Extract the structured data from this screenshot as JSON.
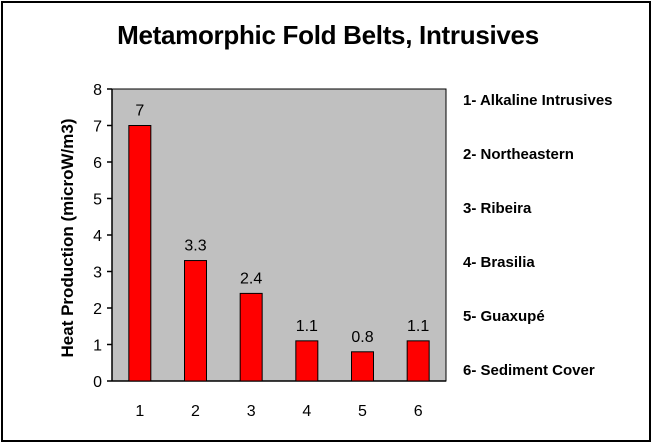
{
  "chart_data": {
    "type": "bar",
    "title": "Metamorphic Fold Belts, Intrusives",
    "xlabel": "",
    "ylabel": "Heat Production (microW/m3)",
    "categories": [
      "1",
      "2",
      "3",
      "4",
      "5",
      "6"
    ],
    "values": [
      7,
      3.3,
      2.4,
      1.1,
      0.8,
      1.1
    ],
    "data_labels": [
      "7",
      "3.3",
      "2.4",
      "1.1",
      "0.8",
      "1.1"
    ],
    "ylim": [
      0,
      8
    ],
    "yticks": [
      "0",
      "1",
      "2",
      "3",
      "4",
      "5",
      "6",
      "7",
      "8"
    ],
    "grid": false,
    "plot_background": "#c0c0c0",
    "bar_color": "#ff0000",
    "legend_placement": "right",
    "legend": [
      "1- Alkaline Intrusives",
      "2- Northeastern",
      "3- Ribeira",
      "4- Brasilia",
      "5- Guaxupé",
      "6- Sediment Cover"
    ]
  }
}
